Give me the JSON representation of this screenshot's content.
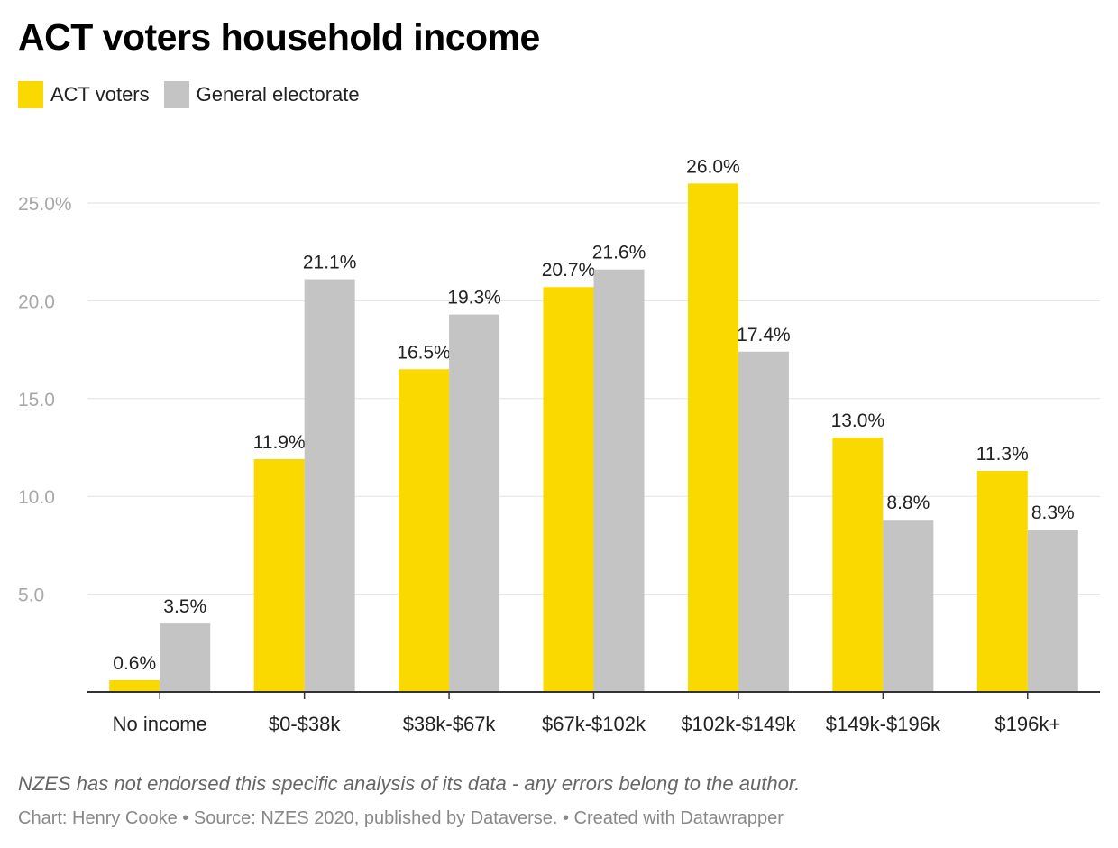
{
  "title": "ACT voters household income",
  "legend": [
    {
      "label": "ACT voters",
      "color": "#f9d900"
    },
    {
      "label": "General electorate",
      "color": "#c4c4c4"
    }
  ],
  "footer": {
    "note": "NZES has not endorsed this specific analysis of its data - any errors belong to the author.",
    "credits": "Chart: Henry Cooke • Source: NZES 2020, published by Dataverse. • Created with Datawrapper"
  },
  "chart_data": {
    "type": "bar",
    "title": "ACT voters household income",
    "categories": [
      "No income",
      "$0-$38k",
      "$38k-$67k",
      "$67k-$102k",
      "$102k-$149k",
      "$149k-$196k",
      "$196k+"
    ],
    "series": [
      {
        "name": "ACT voters",
        "color": "#f9d900",
        "values": [
          0.6,
          11.9,
          16.5,
          20.7,
          26.0,
          13.0,
          11.3
        ],
        "labels": [
          "0.6%",
          "11.9%",
          "16.5%",
          "20.7%",
          "26.0%",
          "13.0%",
          "11.3%"
        ]
      },
      {
        "name": "General electorate",
        "color": "#c4c4c4",
        "values": [
          3.5,
          21.1,
          19.3,
          21.6,
          17.4,
          8.8,
          8.3
        ],
        "labels": [
          "3.5%",
          "21.1%",
          "19.3%",
          "21.6%",
          "17.4%",
          "8.8%",
          "8.3%"
        ]
      }
    ],
    "ylim": [
      0,
      25
    ],
    "y_ticks": [
      5,
      10,
      15,
      20,
      25
    ],
    "y_tick_labels": [
      "5.0",
      "10.0",
      "15.0",
      "20.0",
      "25.0%"
    ],
    "grid": true,
    "legend_position": "top-left",
    "xlabel": "",
    "ylabel": ""
  }
}
